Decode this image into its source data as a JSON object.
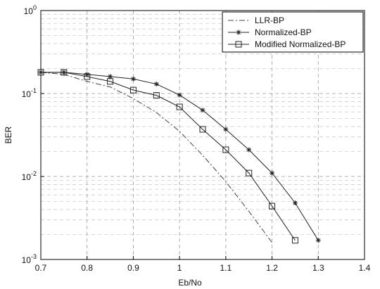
{
  "chart_data": {
    "type": "line",
    "xlabel": "Eb/No",
    "ylabel": "BER",
    "x": [
      0.7,
      0.75,
      0.8,
      0.85,
      0.9,
      0.95,
      1.0,
      1.05,
      1.1,
      1.15,
      1.2,
      1.25,
      1.3
    ],
    "series": [
      {
        "name": "LLR-BP",
        "color": "#444444",
        "marker": "none",
        "dash": "8,3,2,3",
        "values": [
          0.18,
          0.17,
          0.14,
          0.12,
          0.087,
          0.059,
          0.035,
          0.018,
          0.0087,
          0.0038,
          0.0016,
          null,
          null
        ]
      },
      {
        "name": "Normalized-BP",
        "color": "#222222",
        "marker": "star",
        "dash": "none",
        "values": [
          0.18,
          0.18,
          0.17,
          0.16,
          0.15,
          0.13,
          0.096,
          0.063,
          0.037,
          0.021,
          0.011,
          0.0048,
          0.0017
        ]
      },
      {
        "name": "Modified Normalized-BP",
        "color": "#222222",
        "marker": "square",
        "dash": "none",
        "values": [
          0.18,
          0.18,
          0.16,
          0.14,
          0.11,
          0.095,
          0.069,
          0.037,
          0.021,
          0.011,
          0.0044,
          0.0017,
          null
        ]
      }
    ],
    "xlim": [
      0.7,
      1.4
    ],
    "xticks": [
      0.7,
      0.8,
      0.9,
      1,
      1.1,
      1.2,
      1.3,
      1.4
    ],
    "ylim": [
      0.001,
      1
    ],
    "ylog": true,
    "yticks": [
      {
        "value": 0.001,
        "label": "10^-3"
      },
      {
        "value": 0.01,
        "label": "10^-2"
      },
      {
        "value": 0.1,
        "label": "10^-1"
      },
      {
        "value": 1,
        "label": "10^0"
      }
    ],
    "grid": true,
    "legend": "top-right"
  }
}
